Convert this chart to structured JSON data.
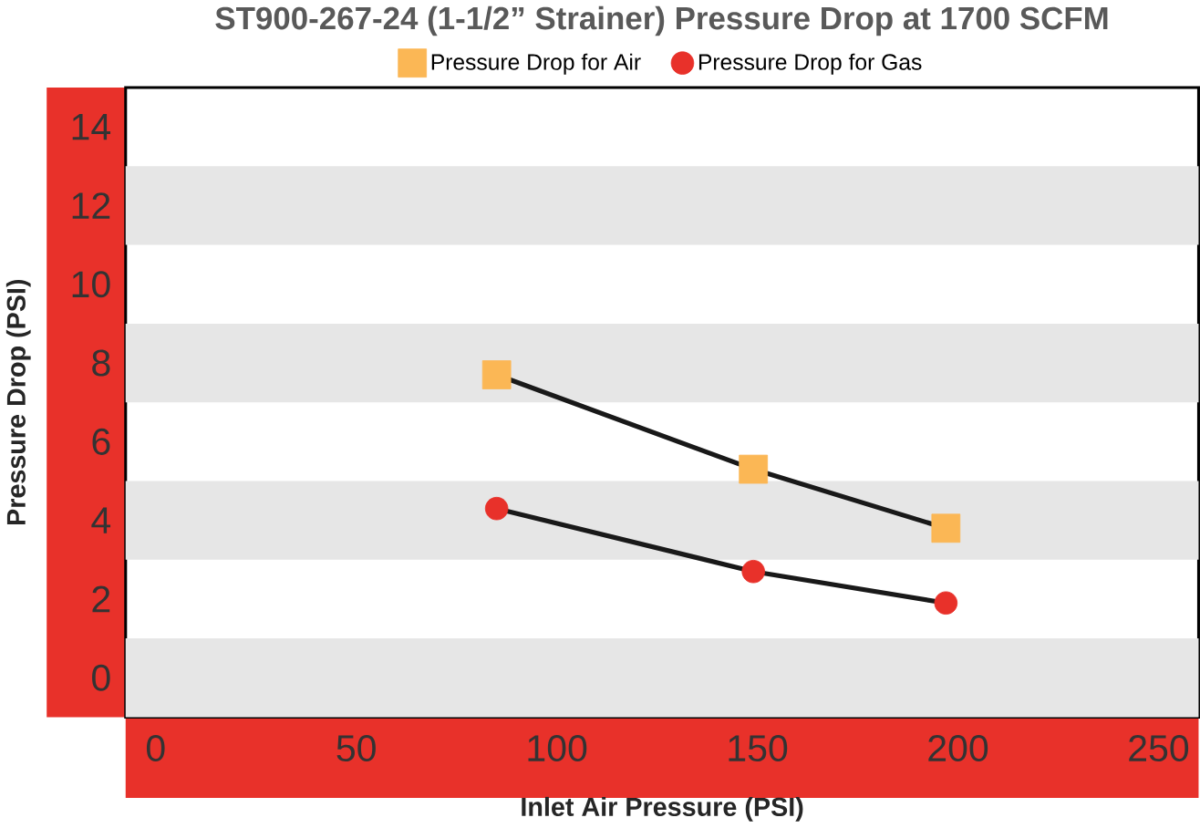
{
  "chart_data": {
    "type": "line",
    "title": "ST900-267-24 (1-1/2” Strainer) Pressure Drop at 1700 SCFM",
    "xlabel": "Inlet Air Pressure (PSI)",
    "ylabel": "Pressure Drop (PSI)",
    "series": [
      {
        "name": "Pressure Drop for Air",
        "color": "#fbb755",
        "marker": "square",
        "x": [
          85,
          149,
          197
        ],
        "values": [
          7.7,
          5.3,
          3.8
        ]
      },
      {
        "name": "Pressure Drop for Gas",
        "color": "#e8312a",
        "marker": "circle",
        "x": [
          85,
          149,
          197
        ],
        "values": [
          4.3,
          2.7,
          1.9
        ]
      }
    ],
    "xlim": [
      -7.5,
      260
    ],
    "ylim": [
      -1,
      15
    ],
    "xticks": [
      0,
      50,
      100,
      150,
      200,
      250
    ],
    "yticks": [
      0,
      2,
      4,
      6,
      8,
      10,
      12,
      14
    ],
    "bands": [
      {
        "axis": "y",
        "from": -1,
        "to": 1,
        "color": "#e6e6e6"
      },
      {
        "axis": "y",
        "from": 3,
        "to": 5,
        "color": "#e6e6e6"
      },
      {
        "axis": "y",
        "from": 7,
        "to": 9,
        "color": "#e6e6e6"
      },
      {
        "axis": "y",
        "from": 11,
        "to": 13,
        "color": "#e6e6e6"
      }
    ],
    "legend": "top",
    "grid": false
  }
}
